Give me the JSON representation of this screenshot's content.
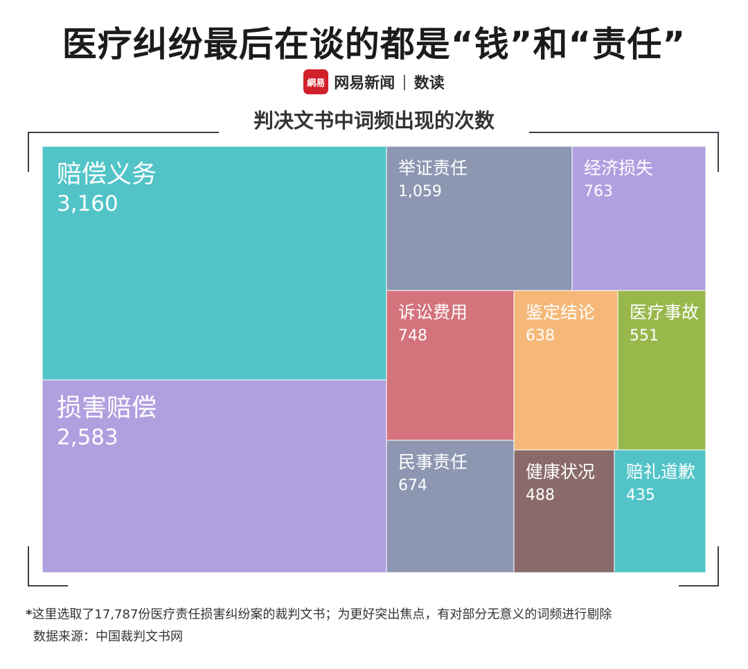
{
  "title": "医疗纠纷最后在谈的都是“钱”和“责任”",
  "brand": {
    "logo_text": "網易",
    "name": "网易新闻",
    "separator": "|",
    "section": "数读"
  },
  "colors": {
    "teal": "#52c4c8",
    "lavender": "#b0a0e0",
    "slate": "#8d97b2",
    "rose": "#d4737c",
    "peach": "#f5b878",
    "olive": "#98b84c",
    "brown": "#8a6b6a",
    "frame": "#3a3f4a"
  },
  "chart_data": {
    "type": "treemap",
    "title": "判决文书中词频出现的次数",
    "unit": "",
    "items": [
      {
        "label": "赔偿义务",
        "value": 3160,
        "display": "3,160",
        "color": "#52c4c8"
      },
      {
        "label": "损害赔偿",
        "value": 2583,
        "display": "2,583",
        "color": "#b0a0e0"
      },
      {
        "label": "举证责任",
        "value": 1059,
        "display": "1,059",
        "color": "#8d97b2"
      },
      {
        "label": "经济损失",
        "value": 763,
        "display": "763",
        "color": "#b0a0e0"
      },
      {
        "label": "诉讼费用",
        "value": 748,
        "display": "748",
        "color": "#d4737c"
      },
      {
        "label": "鉴定结论",
        "value": 638,
        "display": "638",
        "color": "#f5b878"
      },
      {
        "label": "医疗事故",
        "value": 551,
        "display": "551",
        "color": "#98b84c"
      },
      {
        "label": "民事责任",
        "value": 674,
        "display": "674",
        "color": "#8d97b2"
      },
      {
        "label": "健康状况",
        "value": 488,
        "display": "488",
        "color": "#8a6b6a"
      },
      {
        "label": "赔礼道歉",
        "value": 435,
        "display": "435",
        "color": "#52c4c8"
      }
    ]
  },
  "footnote": {
    "star": "*",
    "text": "这里选取了17,787份医疗责任损害纠纷案的裁判文书；为更好突出焦点，有对部分无意义的词频进行剔除"
  },
  "source": "数据来源：中国裁判文书网"
}
